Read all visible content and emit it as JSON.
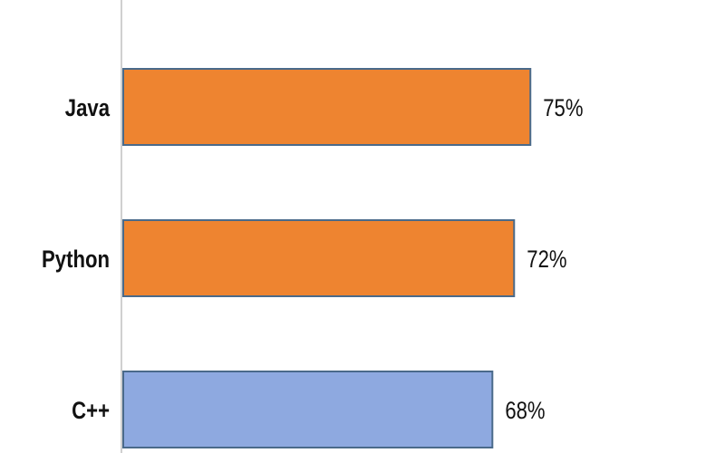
{
  "chart_data": {
    "type": "bar",
    "orientation": "horizontal",
    "categories": [
      "Java",
      "Python",
      "C++"
    ],
    "values": [
      75,
      72,
      68
    ],
    "data_labels": [
      "75%",
      "72%",
      "68%"
    ],
    "colors": [
      "#EE8430",
      "#EE8430",
      "#8EA9E0"
    ],
    "border_color": "#4A6A8A",
    "axis_color": "#D0D0D0",
    "xlim": [
      0,
      100
    ],
    "grid": false,
    "title": "",
    "xlabel": "",
    "ylabel": ""
  }
}
